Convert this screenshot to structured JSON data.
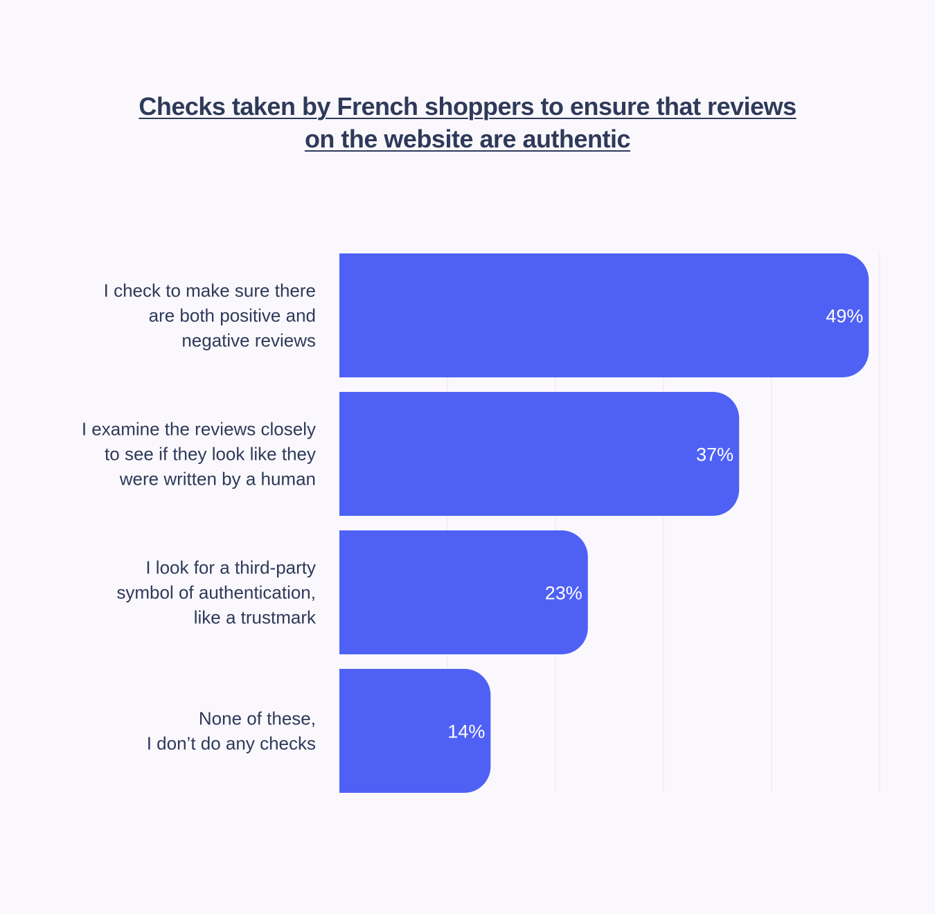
{
  "title": {
    "line1": "Checks taken by French shoppers to ensure that reviews",
    "line2": "on the website are authentic"
  },
  "colors": {
    "background": "#fbf8fd",
    "bar": "#4f61f5",
    "text": "#2e3a59",
    "value_text": "#ffffff",
    "grid": "#e8e4ec"
  },
  "chart_data": {
    "type": "bar",
    "orientation": "horizontal",
    "title": "Checks taken by French shoppers to ensure that reviews on the website are authentic",
    "categories": [
      [
        "I check to make sure there",
        "are both positive and",
        "negative reviews"
      ],
      [
        "I examine the reviews closely",
        "to see if they look like they",
        "were written by a human"
      ],
      [
        "I look for a third-party",
        "symbol of authentication,",
        "like a trustmark"
      ],
      [
        "None of these,",
        "I don’t do any checks"
      ]
    ],
    "values": [
      49,
      37,
      23,
      14
    ],
    "value_labels": [
      "49%",
      "37%",
      "23%",
      "14%"
    ],
    "xlim": [
      0,
      50
    ],
    "grid": true,
    "gridlines": [
      10,
      20,
      30,
      40,
      50
    ],
    "xlabel": "",
    "ylabel": ""
  }
}
